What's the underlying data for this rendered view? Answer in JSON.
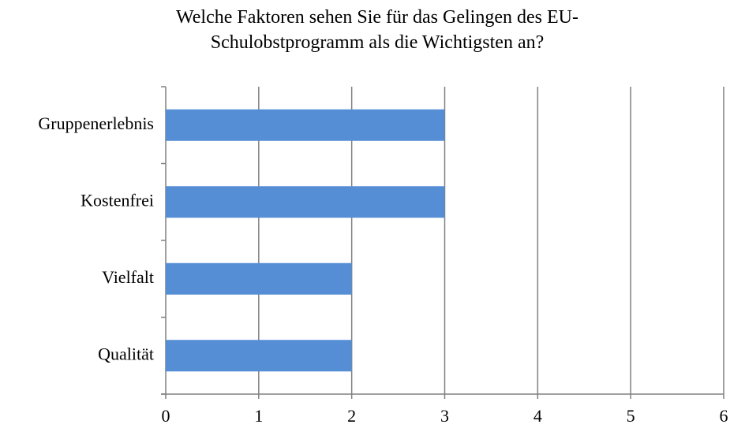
{
  "chart_data": {
    "type": "bar",
    "orientation": "horizontal",
    "title": "Welche Faktoren sehen Sie für das Gelingen des EU-Schulobstprogramm als die Wichtigsten an?",
    "categories": [
      "Gruppenerlebnis",
      "Kostenfrei",
      "Vielfalt",
      "Qualität"
    ],
    "values": [
      3,
      3,
      2,
      2
    ],
    "color": "#558ed5",
    "xlim": [
      0,
      6
    ],
    "xticks": [
      0,
      1,
      2,
      3,
      4,
      5,
      6
    ],
    "grid": true
  }
}
